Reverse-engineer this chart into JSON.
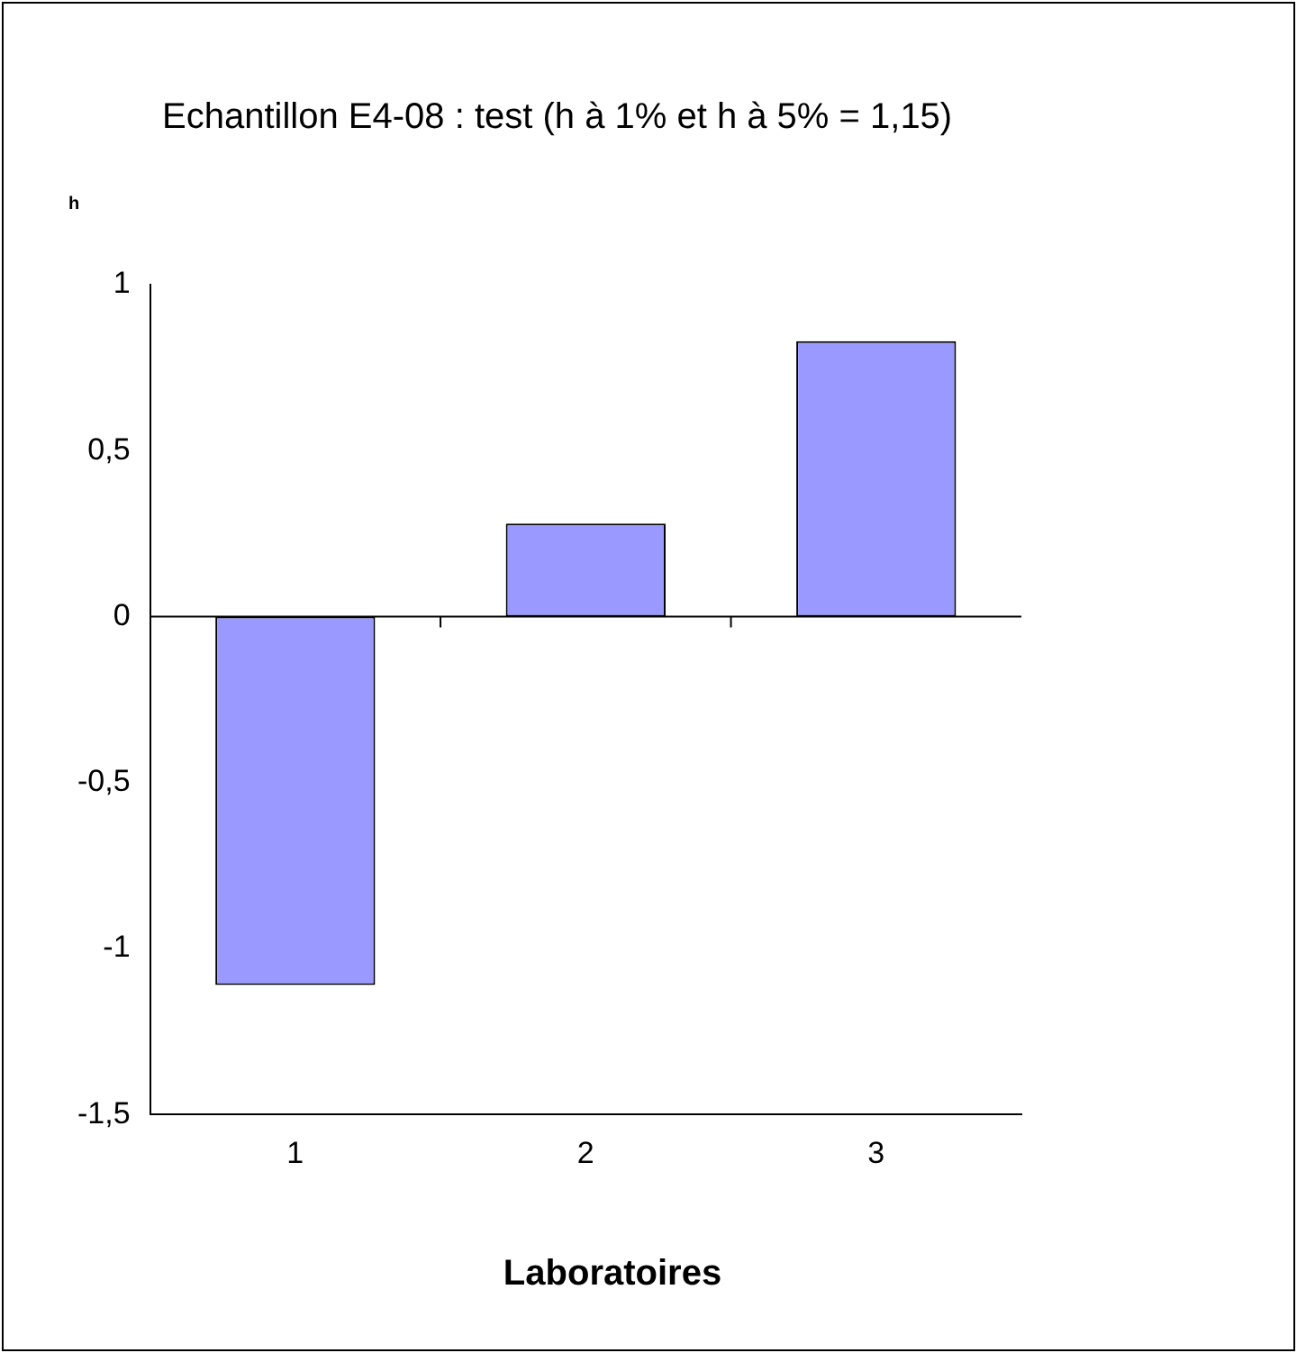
{
  "chart_data": {
    "type": "bar",
    "title": "Echantillon E4-08 : test (h à 1%  et h à 5% = 1,15)",
    "ylabel": "h",
    "xlabel": "Laboratoires",
    "categories": [
      "1",
      "2",
      "3"
    ],
    "series": [
      {
        "color": "#9999ff",
        "values": [
          -1.11,
          0.28,
          0.83
        ]
      }
    ],
    "ylim": [
      -1.5,
      1
    ],
    "yticks": [
      1,
      {
        "value": 0.5,
        "label": "0,5"
      },
      0,
      {
        "value": -0.5,
        "label": "-0,5"
      },
      -1,
      {
        "value": -1.5,
        "label": "-1,5"
      }
    ],
    "ref_lines": [
      {
        "axis": "y",
        "value": 0,
        "color": "#000000"
      }
    ],
    "grid": false,
    "legend": false
  }
}
